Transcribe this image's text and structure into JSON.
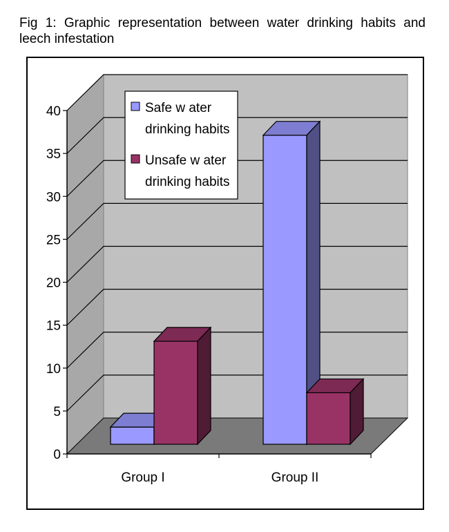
{
  "figure": {
    "caption": "Fig 1: Graphic representation between water drinking habits and leech infestation"
  },
  "chart_data": {
    "type": "bar",
    "style": "3d-clustered-column",
    "title": "",
    "xlabel": "",
    "ylabel": "",
    "categories": [
      "Group I",
      "Group II"
    ],
    "ylim": [
      0,
      40
    ],
    "yticks": [
      0,
      5,
      10,
      15,
      20,
      25,
      30,
      35,
      40
    ],
    "grid": true,
    "legend_position": "top-left",
    "series": [
      {
        "name": "Safe water drinking habits",
        "legend_lines": [
          "Safe w ater",
          "drinking habits"
        ],
        "values": [
          2,
          36
        ],
        "color": "#9999ff"
      },
      {
        "name": "Unsafe water drinking habits",
        "legend_lines": [
          "Unsafe w ater",
          "drinking habits"
        ],
        "values": [
          12,
          6
        ],
        "color": "#993366"
      }
    ]
  }
}
